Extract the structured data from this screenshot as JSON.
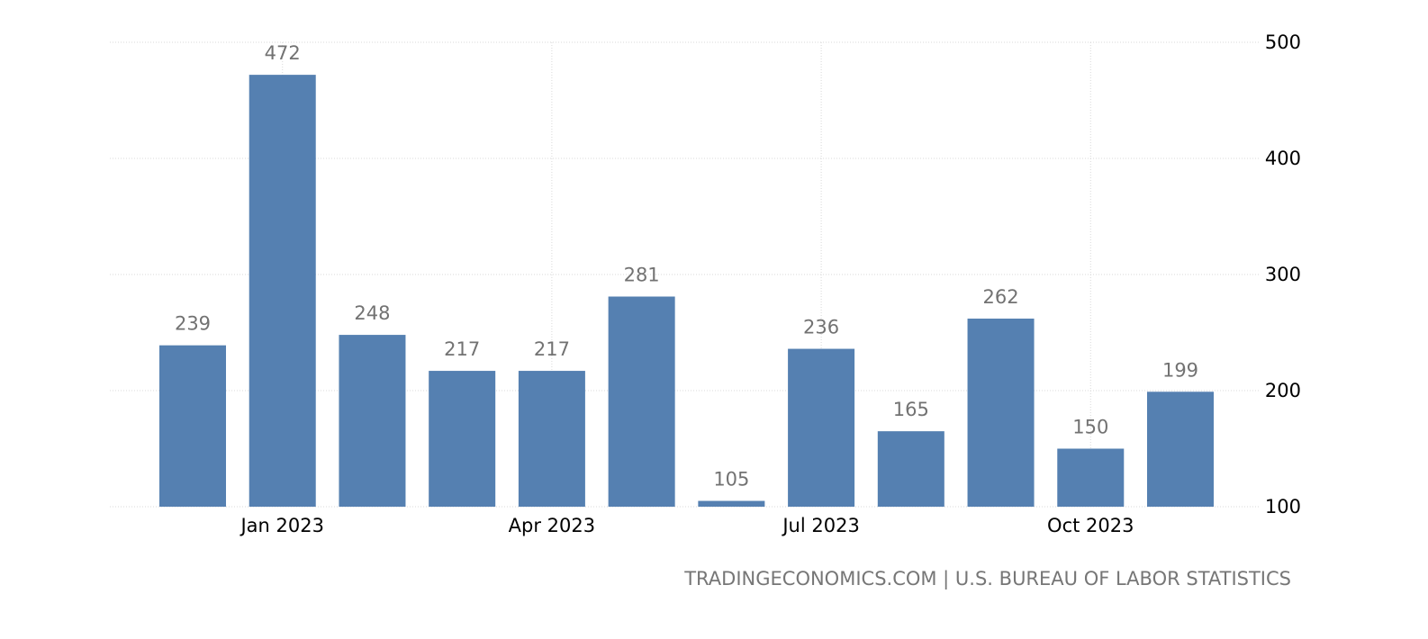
{
  "chart_data": {
    "type": "bar",
    "categories": [
      "Dec 2022",
      "Jan 2023",
      "Feb 2023",
      "Mar 2023",
      "Apr 2023",
      "May 2023",
      "Jun 2023",
      "Jul 2023",
      "Aug 2023",
      "Sep 2023",
      "Oct 2023",
      "Nov 2023"
    ],
    "values": [
      239,
      472,
      248,
      217,
      217,
      281,
      105,
      236,
      165,
      262,
      150,
      199
    ],
    "x_tick_labels": [
      {
        "category": "Jan 2023",
        "label": "Jan 2023"
      },
      {
        "category": "Apr 2023",
        "label": "Apr 2023"
      },
      {
        "category": "Jul 2023",
        "label": "Jul 2023"
      },
      {
        "category": "Oct 2023",
        "label": "Oct 2023"
      }
    ],
    "y_ticks": [
      100,
      200,
      300,
      400,
      500
    ],
    "ylim": [
      100,
      500
    ],
    "y_axis_side": "right",
    "grid": true,
    "data_labels": true,
    "colors": {
      "bar": "#5580b1",
      "grid": "#d9d9d9",
      "label": "#727272"
    },
    "title": "",
    "xlabel": "",
    "ylabel": ""
  },
  "source": "TRADINGECONOMICS.COM | U.S. BUREAU OF LABOR STATISTICS"
}
